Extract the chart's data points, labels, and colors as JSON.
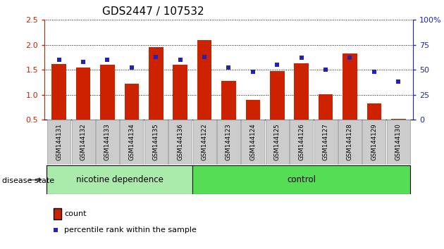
{
  "title": "GDS2447 / 107532",
  "samples": [
    "GSM144131",
    "GSM144132",
    "GSM144133",
    "GSM144134",
    "GSM144135",
    "GSM144136",
    "GSM144122",
    "GSM144123",
    "GSM144124",
    "GSM144125",
    "GSM144126",
    "GSM144127",
    "GSM144128",
    "GSM144129",
    "GSM144130"
  ],
  "count_values": [
    1.62,
    1.55,
    1.6,
    1.22,
    1.95,
    1.6,
    2.1,
    1.28,
    0.9,
    1.47,
    1.63,
    1.01,
    1.83,
    0.82,
    0.51
  ],
  "percentile_values": [
    60,
    58,
    60,
    52,
    63,
    60,
    63,
    52,
    48,
    55,
    62,
    50,
    62,
    48,
    38
  ],
  "bar_color": "#cc2200",
  "square_color": "#2222bb",
  "ylim_left": [
    0.5,
    2.5
  ],
  "ylim_right": [
    0,
    100
  ],
  "yticks_left": [
    0.5,
    1.0,
    1.5,
    2.0,
    2.5
  ],
  "yticks_right": [
    0,
    25,
    50,
    75,
    100
  ],
  "ytick_right_labels": [
    "0",
    "25",
    "50",
    "75",
    "100%"
  ],
  "groups": [
    {
      "label": "nicotine dependence",
      "start": 0,
      "end": 6,
      "color": "#aaeaaa"
    },
    {
      "label": "control",
      "start": 6,
      "end": 15,
      "color": "#55dd55"
    }
  ],
  "group_label": "disease state",
  "legend_count": "count",
  "legend_pct": "percentile rank within the sample",
  "left_axis_color": "#cc2200",
  "right_axis_color": "#2222bb",
  "tick_bg_color": "#cccccc",
  "tick_border_color": "#999999"
}
